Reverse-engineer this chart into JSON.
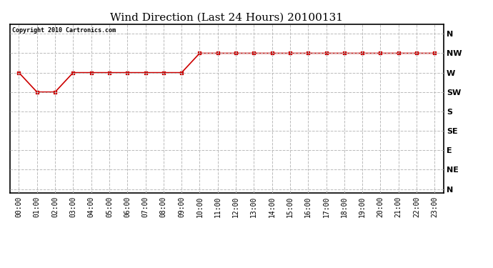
{
  "title": "Wind Direction (Last 24 Hours) 20100131",
  "copyright": "Copyright 2010 Cartronics.com",
  "x_labels": [
    "00:00",
    "01:00",
    "02:00",
    "03:00",
    "04:00",
    "05:00",
    "06:00",
    "07:00",
    "08:00",
    "09:00",
    "10:00",
    "11:00",
    "12:00",
    "13:00",
    "14:00",
    "15:00",
    "16:00",
    "17:00",
    "18:00",
    "19:00",
    "20:00",
    "21:00",
    "22:00",
    "23:00"
  ],
  "y_ticks_labels": [
    "N",
    "NW",
    "W",
    "SW",
    "S",
    "SE",
    "E",
    "NE",
    "N"
  ],
  "y_ticks_values": [
    8,
    7,
    6,
    5,
    4,
    3,
    2,
    1,
    0
  ],
  "wind_values": [
    6,
    5,
    5,
    6,
    6,
    6,
    6,
    6,
    6,
    6,
    7,
    7,
    7,
    7,
    7,
    7,
    7,
    7,
    7,
    7,
    7,
    7,
    7,
    7
  ],
  "line_color": "#cc0000",
  "marker": "s",
  "marker_size": 3,
  "line_width": 1.2,
  "grid_color": "#bbbbbb",
  "grid_linestyle": "--",
  "bg_color": "#ffffff",
  "plot_bg_color": "#ffffff",
  "title_fontsize": 11,
  "copyright_fontsize": 6,
  "tick_fontsize": 7,
  "border_color": "#000000"
}
